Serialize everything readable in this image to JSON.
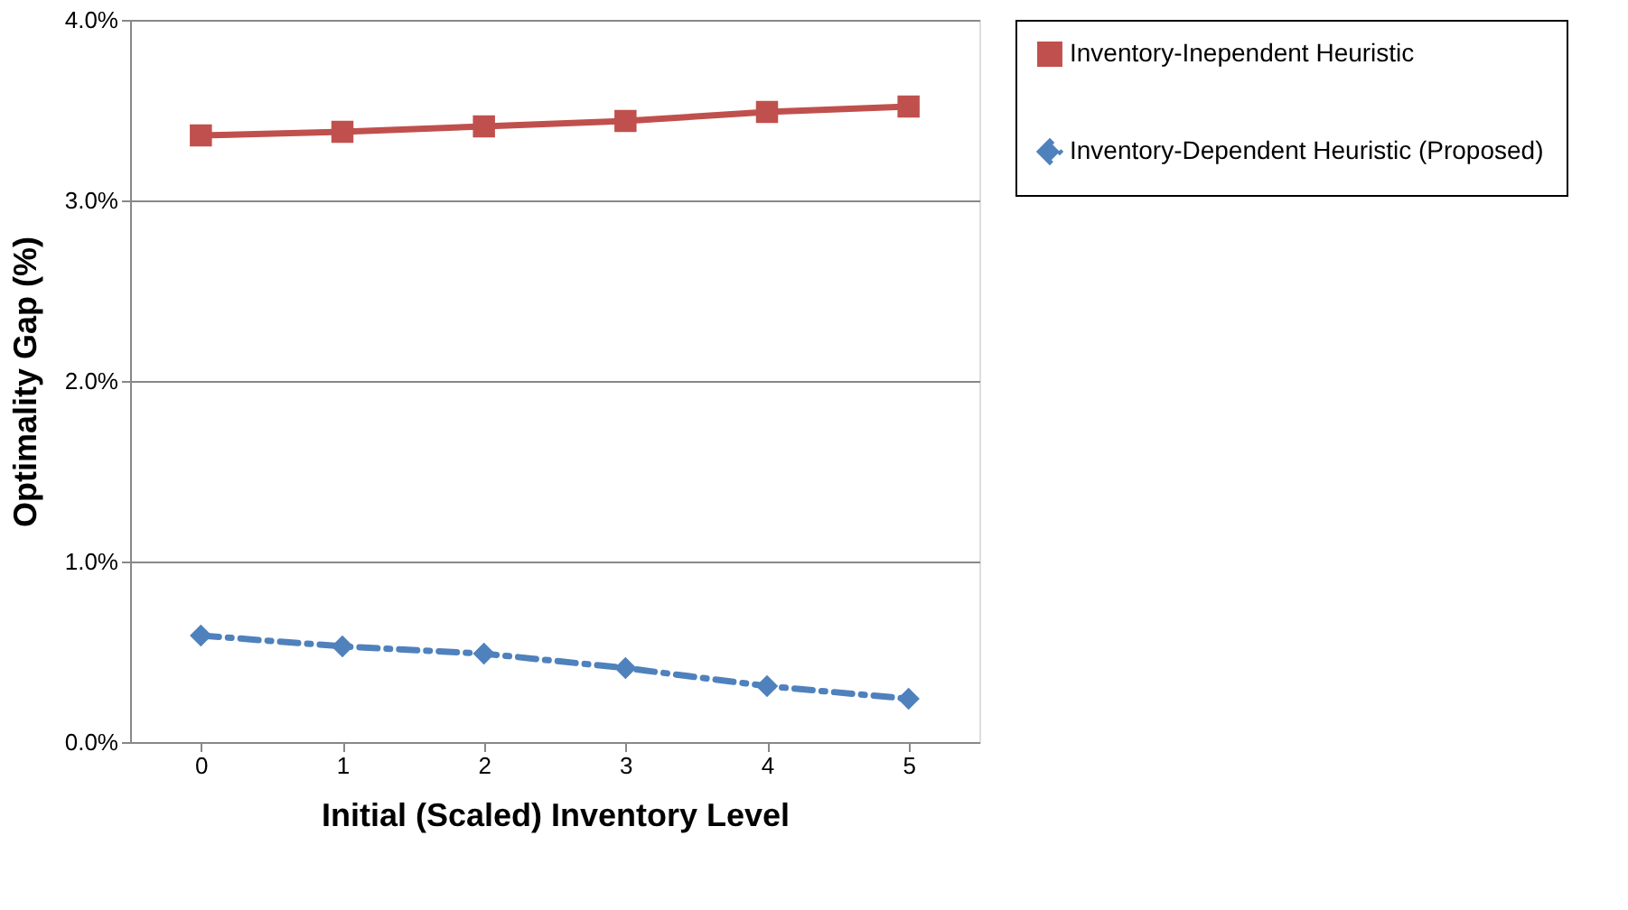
{
  "chart_data": {
    "type": "line",
    "xlabel": "Initial (Scaled) Inventory Level",
    "ylabel": "Optimality Gap (%)",
    "categories": [
      "0",
      "1",
      "2",
      "3",
      "4",
      "5"
    ],
    "series": [
      {
        "name": "Inventory-Inependent Heuristic",
        "color": "#c0504d",
        "marker": "square",
        "line_style": "solid",
        "values": [
          3.36,
          3.38,
          3.41,
          3.44,
          3.49,
          3.52
        ]
      },
      {
        "name": "Inventory-Dependent Heuristic (Proposed)",
        "color": "#4f81bd",
        "marker": "diamond",
        "line_style": "dashed",
        "values": [
          0.59,
          0.53,
          0.49,
          0.41,
          0.31,
          0.24
        ]
      }
    ],
    "ylim": [
      0,
      4
    ],
    "yticks": [
      {
        "value": 0,
        "label": "0.0%"
      },
      {
        "value": 1,
        "label": "1.0%"
      },
      {
        "value": 2,
        "label": "2.0%"
      },
      {
        "value": 3,
        "label": "3.0%"
      },
      {
        "value": 4,
        "label": "4.0%"
      }
    ],
    "grid": "y",
    "legend": "right"
  }
}
